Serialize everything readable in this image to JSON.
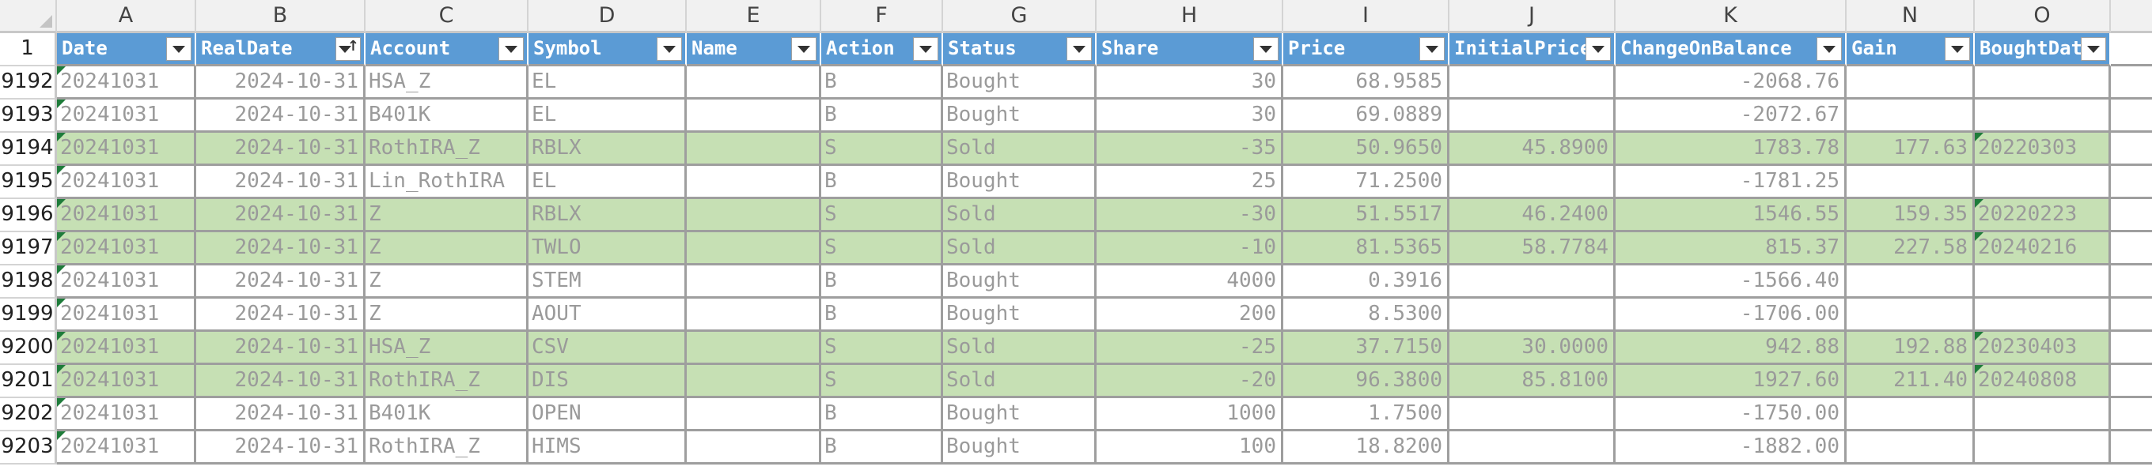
{
  "columns": [
    "A",
    "B",
    "C",
    "D",
    "E",
    "F",
    "G",
    "H",
    "I",
    "J",
    "K",
    "N",
    "O"
  ],
  "header_row_number": "1",
  "headers": [
    {
      "label": "Date",
      "sorted": false
    },
    {
      "label": "RealDate",
      "sorted": true
    },
    {
      "label": "Account",
      "sorted": false
    },
    {
      "label": "Symbol",
      "sorted": false
    },
    {
      "label": "Name",
      "sorted": false
    },
    {
      "label": "Action",
      "sorted": false
    },
    {
      "label": "Status",
      "sorted": false
    },
    {
      "label": "Share",
      "sorted": false
    },
    {
      "label": "Price",
      "sorted": false
    },
    {
      "label": "InitialPrice",
      "sorted": false
    },
    {
      "label": "ChangeOnBalance",
      "sorted": false
    },
    {
      "label": "Gain",
      "sorted": false
    },
    {
      "label": "BoughtDate",
      "sorted": false
    }
  ],
  "rows": [
    {
      "n": "9192",
      "sold": false,
      "date": "20241031",
      "realdate": "2024-10-31",
      "account": "HSA_Z",
      "symbol": "EL",
      "name": "",
      "action": "B",
      "status": "Bought",
      "share": "30",
      "price": "68.9585",
      "initial": "",
      "change": "-2068.76",
      "gain": "",
      "bought": ""
    },
    {
      "n": "9193",
      "sold": false,
      "date": "20241031",
      "realdate": "2024-10-31",
      "account": "B401K",
      "symbol": "EL",
      "name": "",
      "action": "B",
      "status": "Bought",
      "share": "30",
      "price": "69.0889",
      "initial": "",
      "change": "-2072.67",
      "gain": "",
      "bought": ""
    },
    {
      "n": "9194",
      "sold": true,
      "date": "20241031",
      "realdate": "2024-10-31",
      "account": "RothIRA_Z",
      "symbol": "RBLX",
      "name": "",
      "action": "S",
      "status": "Sold",
      "share": "-35",
      "price": "50.9650",
      "initial": "45.8900",
      "change": "1783.78",
      "gain": "177.63",
      "bought": "20220303"
    },
    {
      "n": "9195",
      "sold": false,
      "date": "20241031",
      "realdate": "2024-10-31",
      "account": "Lin_RothIRA",
      "symbol": "EL",
      "name": "",
      "action": "B",
      "status": "Bought",
      "share": "25",
      "price": "71.2500",
      "initial": "",
      "change": "-1781.25",
      "gain": "",
      "bought": ""
    },
    {
      "n": "9196",
      "sold": true,
      "date": "20241031",
      "realdate": "2024-10-31",
      "account": "Z",
      "symbol": "RBLX",
      "name": "",
      "action": "S",
      "status": "Sold",
      "share": "-30",
      "price": "51.5517",
      "initial": "46.2400",
      "change": "1546.55",
      "gain": "159.35",
      "bought": "20220223"
    },
    {
      "n": "9197",
      "sold": true,
      "date": "20241031",
      "realdate": "2024-10-31",
      "account": "Z",
      "symbol": "TWLO",
      "name": "",
      "action": "S",
      "status": "Sold",
      "share": "-10",
      "price": "81.5365",
      "initial": "58.7784",
      "change": "815.37",
      "gain": "227.58",
      "bought": "20240216"
    },
    {
      "n": "9198",
      "sold": false,
      "date": "20241031",
      "realdate": "2024-10-31",
      "account": "Z",
      "symbol": "STEM",
      "name": "",
      "action": "B",
      "status": "Bought",
      "share": "4000",
      "price": "0.3916",
      "initial": "",
      "change": "-1566.40",
      "gain": "",
      "bought": ""
    },
    {
      "n": "9199",
      "sold": false,
      "date": "20241031",
      "realdate": "2024-10-31",
      "account": "Z",
      "symbol": "AOUT",
      "name": "",
      "action": "B",
      "status": "Bought",
      "share": "200",
      "price": "8.5300",
      "initial": "",
      "change": "-1706.00",
      "gain": "",
      "bought": ""
    },
    {
      "n": "9200",
      "sold": true,
      "date": "20241031",
      "realdate": "2024-10-31",
      "account": "HSA_Z",
      "symbol": "CSV",
      "name": "",
      "action": "S",
      "status": "Sold",
      "share": "-25",
      "price": "37.7150",
      "initial": "30.0000",
      "change": "942.88",
      "gain": "192.88",
      "bought": "20230403"
    },
    {
      "n": "9201",
      "sold": true,
      "date": "20241031",
      "realdate": "2024-10-31",
      "account": "RothIRA_Z",
      "symbol": "DIS",
      "name": "",
      "action": "S",
      "status": "Sold",
      "share": "-20",
      "price": "96.3800",
      "initial": "85.8100",
      "change": "1927.60",
      "gain": "211.40",
      "bought": "20240808"
    },
    {
      "n": "9202",
      "sold": false,
      "date": "20241031",
      "realdate": "2024-10-31",
      "account": "B401K",
      "symbol": "OPEN",
      "name": "",
      "action": "B",
      "status": "Bought",
      "share": "1000",
      "price": "1.7500",
      "initial": "",
      "change": "-1750.00",
      "gain": "",
      "bought": ""
    },
    {
      "n": "9203",
      "sold": false,
      "date": "20241031",
      "realdate": "2024-10-31",
      "account": "RothIRA_Z",
      "symbol": "HIMS",
      "name": "",
      "action": "B",
      "status": "Bought",
      "share": "100",
      "price": "18.8200",
      "initial": "",
      "change": "-1882.00",
      "gain": "",
      "bought": ""
    }
  ]
}
